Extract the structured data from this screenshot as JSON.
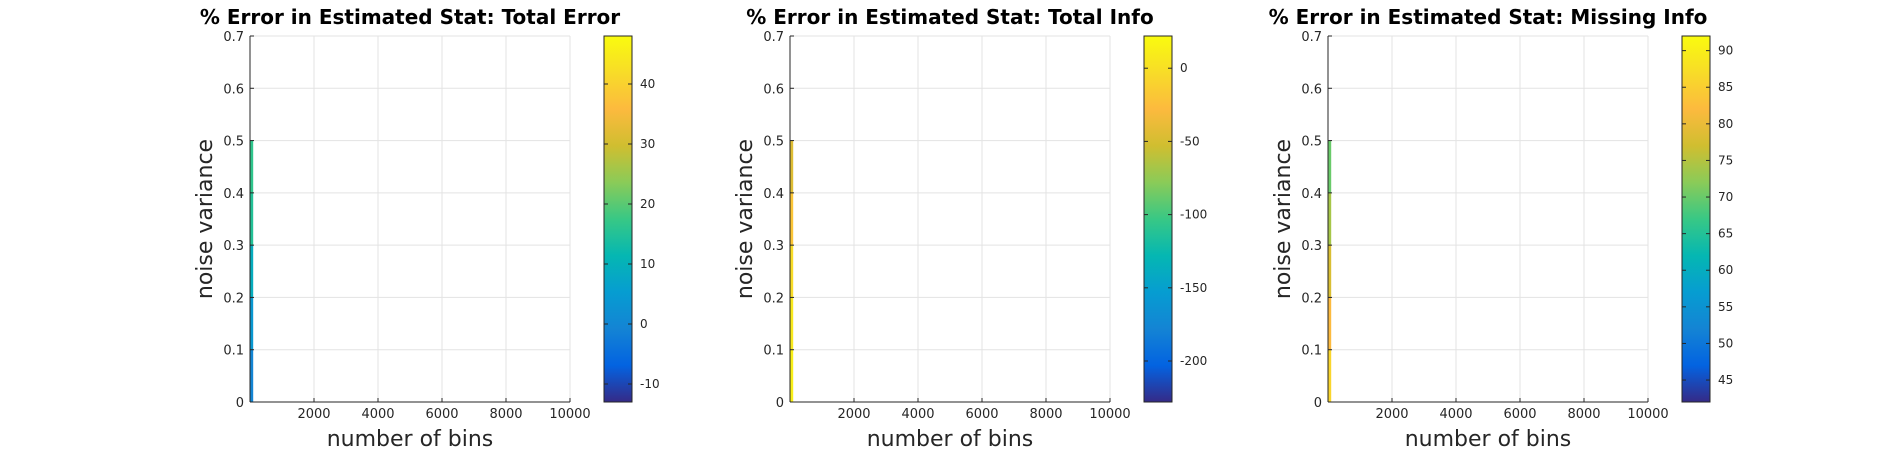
{
  "chart_data": [
    {
      "type": "heatmap",
      "title": "% Error in Estimated Stat: Total Error",
      "xlabel": "number of bins",
      "ylabel": "noise variance",
      "xlim": [
        0,
        10000
      ],
      "ylim": [
        0,
        0.7
      ],
      "xticks": [
        2000,
        4000,
        6000,
        8000,
        10000
      ],
      "yticks": [
        0,
        0.1,
        0.2,
        0.3,
        0.4,
        0.5,
        0.6,
        0.7
      ],
      "grid": true,
      "colormap": "parula",
      "colorbar": {
        "range": [
          -13,
          48
        ],
        "ticks": [
          -10,
          0,
          10,
          20,
          30,
          40
        ]
      },
      "data_extent": {
        "x": [
          0,
          100
        ],
        "y": [
          0,
          0.5
        ]
      },
      "strip": [
        {
          "y": 0.5,
          "value": 15
        },
        {
          "y": 0.4,
          "value": 18
        },
        {
          "y": 0.3,
          "value": 12
        },
        {
          "y": 0.2,
          "value": 6
        },
        {
          "y": 0.1,
          "value": 2
        },
        {
          "y": 0.0,
          "value": -3
        }
      ]
    },
    {
      "type": "heatmap",
      "title": "% Error in Estimated Stat: Total Info",
      "xlabel": "number of bins",
      "ylabel": "noise variance",
      "xlim": [
        0,
        10000
      ],
      "ylim": [
        0,
        0.7
      ],
      "xticks": [
        2000,
        4000,
        6000,
        8000,
        10000
      ],
      "yticks": [
        0,
        0.1,
        0.2,
        0.3,
        0.4,
        0.5,
        0.6,
        0.7
      ],
      "grid": true,
      "colormap": "parula",
      "colorbar": {
        "range": [
          -228,
          22
        ],
        "ticks": [
          -200,
          -150,
          -100,
          -50,
          0
        ]
      },
      "data_extent": {
        "x": [
          0,
          100
        ],
        "y": [
          0,
          0.5
        ]
      },
      "strip": [
        {
          "y": 0.5,
          "value": -60
        },
        {
          "y": 0.4,
          "value": -30
        },
        {
          "y": 0.3,
          "value": -10
        },
        {
          "y": 0.2,
          "value": 5
        },
        {
          "y": 0.1,
          "value": 10
        },
        {
          "y": 0.0,
          "value": 15
        }
      ]
    },
    {
      "type": "heatmap",
      "title": "% Error in Estimated Stat: Missing Info",
      "xlabel": "number of bins",
      "ylabel": "noise variance",
      "xlim": [
        0,
        10000
      ],
      "ylim": [
        0,
        0.7
      ],
      "xticks": [
        2000,
        4000,
        6000,
        8000,
        10000
      ],
      "yticks": [
        0,
        0.1,
        0.2,
        0.3,
        0.4,
        0.5,
        0.6,
        0.7
      ],
      "grid": true,
      "colormap": "parula",
      "colorbar": {
        "range": [
          42,
          92
        ],
        "ticks": [
          45,
          50,
          55,
          60,
          65,
          70,
          75,
          80,
          85,
          90
        ]
      },
      "data_extent": {
        "x": [
          0,
          100
        ],
        "y": [
          0,
          0.5
        ]
      },
      "strip": [
        {
          "y": 0.5,
          "value": 68
        },
        {
          "y": 0.4,
          "value": 72
        },
        {
          "y": 0.3,
          "value": 76
        },
        {
          "y": 0.2,
          "value": 80
        },
        {
          "y": 0.1,
          "value": 84
        },
        {
          "y": 0.0,
          "value": 88
        }
      ]
    }
  ]
}
